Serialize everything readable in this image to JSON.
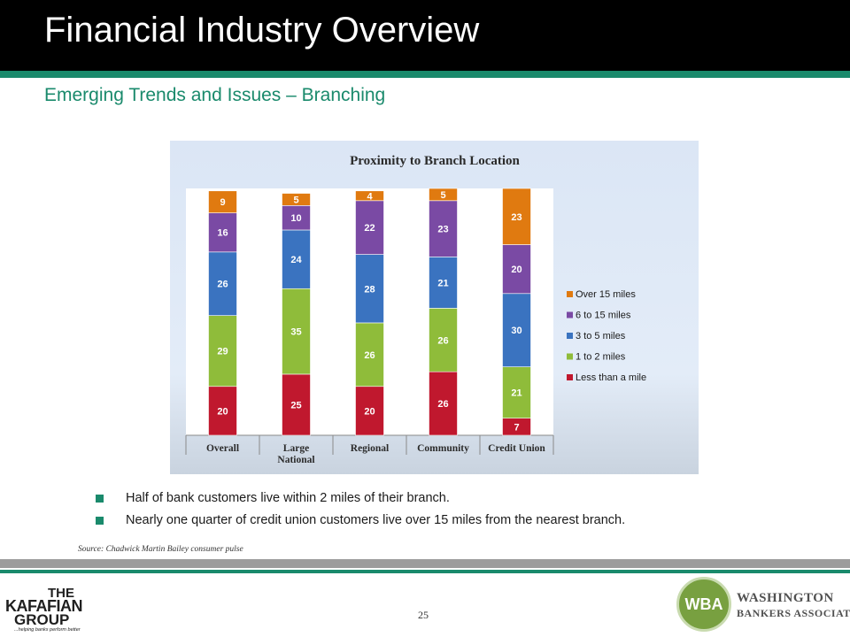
{
  "header": {
    "title": "Financial Industry Overview",
    "subtitle": "Emerging Trends and Issues – Branching"
  },
  "colors": {
    "header_bg": "#000000",
    "accent_green": "#1a8a6c",
    "footer_gray": "#9c9c9c"
  },
  "chart_data": {
    "type": "bar",
    "stacked": true,
    "title": "Proximity to Branch Location",
    "categories": [
      "Overall",
      "Large National",
      "Regional",
      "Community",
      "Credit Union"
    ],
    "series": [
      {
        "name": "Less than a mile",
        "color": "#c0182e",
        "values": [
          20,
          25,
          20,
          26,
          7
        ]
      },
      {
        "name": "1 to 2 miles",
        "color": "#8fbc3a",
        "values": [
          29,
          35,
          26,
          26,
          21
        ]
      },
      {
        "name": "3 to 5 miles",
        "color": "#3a73c0",
        "values": [
          26,
          24,
          28,
          21,
          30
        ]
      },
      {
        "name": "6 to 15 miles",
        "color": "#7a4aa4",
        "values": [
          16,
          10,
          22,
          23,
          20
        ]
      },
      {
        "name": "Over 15 miles",
        "color": "#e07a10",
        "values": [
          9,
          5,
          4,
          5,
          23
        ]
      }
    ],
    "legend_order": [
      "Over 15 miles",
      "6 to 15 miles",
      "3 to 5 miles",
      "1 to 2 miles",
      "Less than a mile"
    ],
    "legend_position": "right",
    "ylim": [
      0,
      101
    ],
    "grid": false
  },
  "bullets": [
    "Half  of bank customers live within 2 miles of their branch.",
    "Nearly one quarter of credit union customers live over 15 miles from the nearest branch."
  ],
  "source": "Source:  Chadwick Martin Bailey consumer pulse",
  "footer": {
    "page_number": "25",
    "left_logo": {
      "line1": "THE",
      "line2": "KAFAFIAN",
      "line3": "GROUP",
      "tagline": "...helping banks perform better"
    },
    "right_logo": {
      "seal": "WBA",
      "name_line1": "WASHINGTON",
      "name_line2": "BANKERS ASSOCIATION"
    }
  }
}
